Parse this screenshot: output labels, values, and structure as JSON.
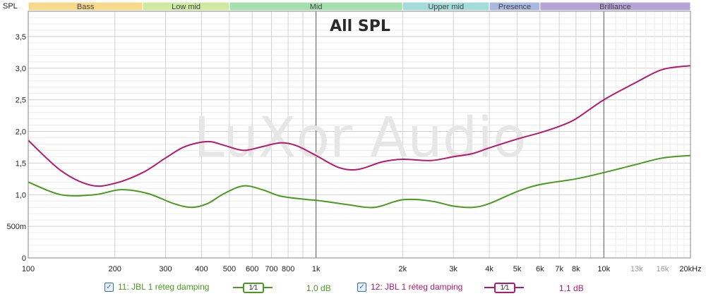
{
  "chart_data": {
    "type": "line",
    "title": "All SPL",
    "ylabel": "SPL",
    "xlabel": "",
    "x_scale": "log",
    "xlim": [
      100,
      20000
    ],
    "ylim": [
      0,
      3.9
    ],
    "x_ticks": [
      {
        "v": 100,
        "label": "100",
        "minor": false
      },
      {
        "v": 200,
        "label": "200",
        "minor": false
      },
      {
        "v": 300,
        "label": "300",
        "minor": false
      },
      {
        "v": 400,
        "label": "400",
        "minor": false
      },
      {
        "v": 500,
        "label": "500",
        "minor": false
      },
      {
        "v": 600,
        "label": "600",
        "minor": false
      },
      {
        "v": 700,
        "label": "700",
        "minor": false
      },
      {
        "v": 800,
        "label": "800",
        "minor": false
      },
      {
        "v": 1000,
        "label": "1k",
        "minor": false
      },
      {
        "v": 2000,
        "label": "2k",
        "minor": false
      },
      {
        "v": 3000,
        "label": "3k",
        "minor": false
      },
      {
        "v": 4000,
        "label": "4k",
        "minor": false
      },
      {
        "v": 5000,
        "label": "5k",
        "minor": false
      },
      {
        "v": 6000,
        "label": "6k",
        "minor": false
      },
      {
        "v": 7000,
        "label": "7k",
        "minor": false
      },
      {
        "v": 8000,
        "label": "8k",
        "minor": false
      },
      {
        "v": 10000,
        "label": "10k",
        "minor": false
      },
      {
        "v": 13000,
        "label": "13k",
        "minor": true
      },
      {
        "v": 16000,
        "label": "16k",
        "minor": true
      },
      {
        "v": 20000,
        "label": "20kHz",
        "minor": false
      }
    ],
    "y_ticks": [
      {
        "v": 0,
        "label": "0"
      },
      {
        "v": 0.5,
        "label": "500m"
      },
      {
        "v": 1.0,
        "label": "1,0"
      },
      {
        "v": 1.5,
        "label": "1,5"
      },
      {
        "v": 2.0,
        "label": "2,0"
      },
      {
        "v": 2.5,
        "label": "2,5"
      },
      {
        "v": 3.0,
        "label": "3,0"
      },
      {
        "v": 3.5,
        "label": "3,5"
      }
    ],
    "bands": [
      {
        "label": "Bass",
        "from": 100,
        "to": 250,
        "color": "#f7d98b"
      },
      {
        "label": "Low mid",
        "from": 250,
        "to": 500,
        "color": "#cdeaa0"
      },
      {
        "label": "Mid",
        "from": 500,
        "to": 2000,
        "color": "#a4dfae"
      },
      {
        "label": "Upper mid",
        "from": 2000,
        "to": 4000,
        "color": "#a3dcd8"
      },
      {
        "label": "Presence",
        "from": 4000,
        "to": 6000,
        "color": "#a9b9e0"
      },
      {
        "label": "Brilliance",
        "from": 6000,
        "to": 20000,
        "color": "#b5a5d6"
      }
    ],
    "grid": true,
    "watermark": "LuXor Audio",
    "series": [
      {
        "name": "11: JBL 1 réteg damping",
        "color": "#4a9a1f",
        "x": [
          100,
          130,
          170,
          210,
          260,
          320,
          370,
          420,
          480,
          560,
          650,
          750,
          900,
          1050,
          1300,
          1600,
          2000,
          2500,
          3000,
          3500,
          4000,
          5000,
          6000,
          8000,
          10000,
          13000,
          16000,
          20000
        ],
        "y": [
          1.2,
          1.0,
          1.0,
          1.08,
          1.02,
          0.86,
          0.8,
          0.86,
          1.02,
          1.14,
          1.08,
          0.98,
          0.93,
          0.9,
          0.84,
          0.8,
          0.92,
          0.9,
          0.82,
          0.8,
          0.86,
          1.05,
          1.16,
          1.25,
          1.35,
          1.48,
          1.58,
          1.62
        ]
      },
      {
        "name": "12: JBL 1 réteg damping",
        "color": "#b5196b",
        "x": [
          100,
          130,
          165,
          200,
          250,
          300,
          350,
          420,
          480,
          560,
          650,
          750,
          850,
          1000,
          1200,
          1400,
          1700,
          2000,
          2500,
          3000,
          3500,
          4000,
          5000,
          6000,
          7000,
          8000,
          10000,
          13000,
          16000,
          20000
        ],
        "y": [
          1.86,
          1.38,
          1.15,
          1.18,
          1.35,
          1.58,
          1.76,
          1.84,
          1.78,
          1.7,
          1.76,
          1.82,
          1.78,
          1.62,
          1.43,
          1.4,
          1.52,
          1.56,
          1.54,
          1.6,
          1.65,
          1.74,
          1.88,
          1.98,
          2.08,
          2.2,
          2.5,
          2.78,
          2.98,
          3.04
        ]
      }
    ]
  },
  "legend": {
    "items": [
      {
        "label": "11: JBL 1 réteg damping",
        "smoothing": "1⁄1",
        "value": "1,0 dB",
        "color": "#4a9a1f",
        "checked": true
      },
      {
        "label": "12: JBL 1 réteg damping",
        "smoothing": "1⁄1",
        "value": "1,1 dB",
        "color": "#b5196b",
        "checked": true
      }
    ]
  }
}
